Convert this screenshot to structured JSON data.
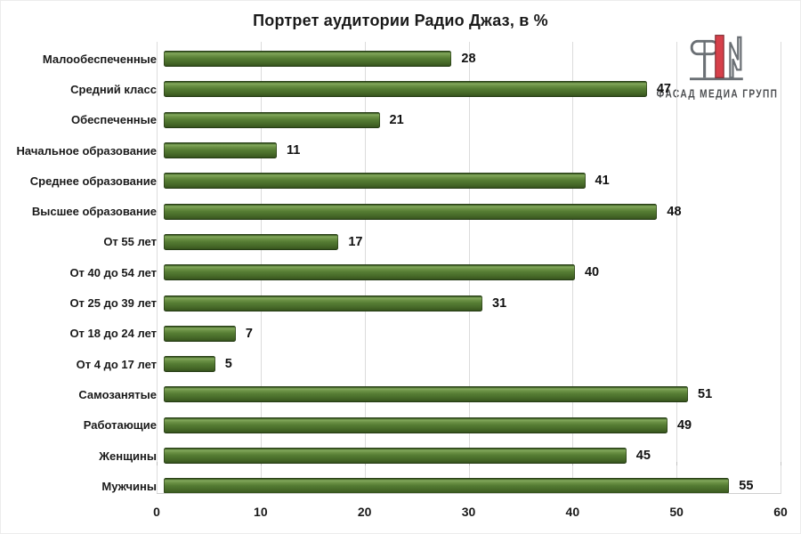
{
  "title": "Портрет аудитории Радио Джаз, в %",
  "logo": {
    "text": "ФАСАД МЕДИА ГРУПП",
    "mark_gray": "#6b7075",
    "mark_red": "#d6404a"
  },
  "chart_data": {
    "type": "bar",
    "orientation": "horizontal",
    "title": "Портрет аудитории Радио Джаз, в %",
    "categories": [
      "Малообеспеченные",
      "Средний класс",
      "Обеспеченные",
      "Начальное образование",
      "Среднее образование",
      "Высшее образование",
      "От 55 лет",
      "От 40 до 54 лет",
      "От 25 до 39 лет",
      "От 18 до 24 лет",
      "От 4 до 17 лет",
      "Самозанятые",
      "Работающие",
      "Женщины",
      "Мужчины"
    ],
    "values": [
      28,
      47,
      21,
      11,
      41,
      48,
      17,
      40,
      31,
      7,
      5,
      51,
      49,
      45,
      55
    ],
    "xlabel": "",
    "ylabel": "",
    "xlim": [
      0,
      60
    ],
    "xticks": [
      0,
      10,
      20,
      30,
      40,
      50,
      60
    ],
    "grid": true,
    "value_labels": true,
    "bar_color": "#527a33",
    "gridline_color": "#dcdcdc",
    "legend": null
  }
}
